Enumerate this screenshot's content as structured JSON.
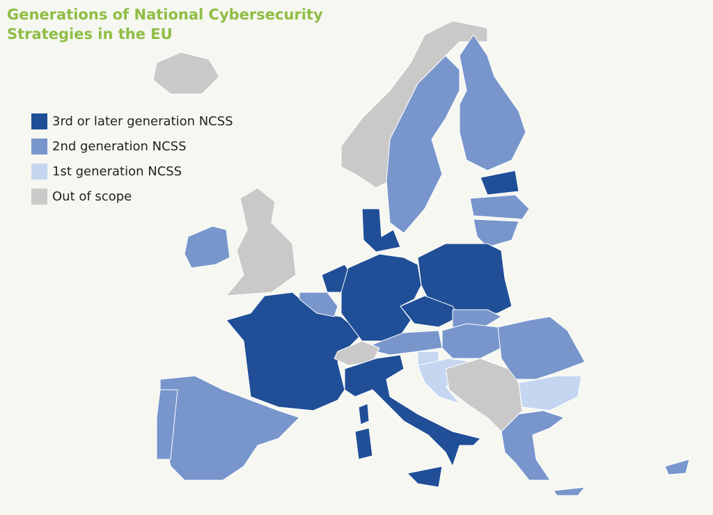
{
  "title": [
    "Generations of National Cybersecurity",
    "Strategies in the EU"
  ],
  "legend": [
    {
      "label": "3rd or later generation NCSS",
      "color": "#214f97"
    },
    {
      "label": "2nd generation NCSS",
      "color": "#7896cc"
    },
    {
      "label": "1st generation NCSS",
      "color": "#c6d6f0"
    },
    {
      "label": "Out of scope",
      "color": "#c9c9c9"
    }
  ]
}
